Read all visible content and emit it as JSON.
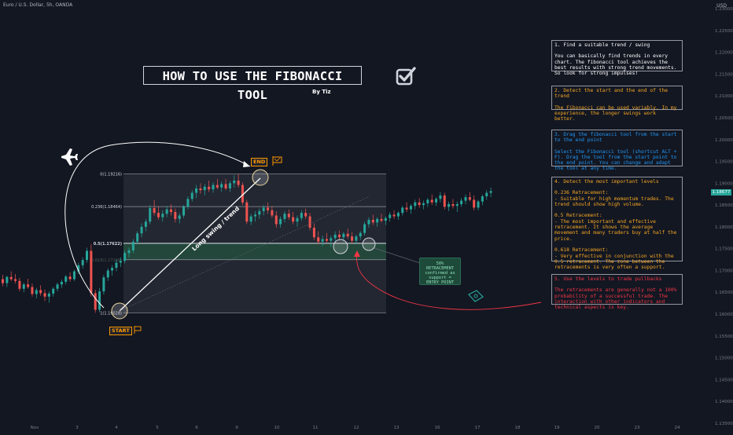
{
  "header": {
    "symbol": "Euro / U.S. Dollar, 5h, OANDA",
    "currency": "USD"
  },
  "title": "HOW TO USE THE FIBONACCI TOOL",
  "byline": "By Tiz",
  "panels": [
    {
      "heading": "1. Find a suitable trend / swing",
      "body": "You can basically find trends in every chart. The fibonacci tool achieves the best results with strong trend movements. So look for strong impulses!",
      "color": "#ffffff"
    },
    {
      "heading": "2. Detect the start and the end of the trend",
      "body": "The Fibonacci can be used variably. In my experience, the longer swings work better.",
      "color": "#f5a623"
    },
    {
      "heading": "3. Drag the fibonacci tool from the start to the end point",
      "body": "Select the Fibonacci tool (shortcut ALT + F). Drag the tool from the start point to the end point. You can change and adapt the tool at any time.",
      "color": "#2196f3"
    },
    {
      "heading": "4. Detect the most important levels",
      "body": "0.236 Retracement:\n- Suitable for high momentum trades. The trend should show high volume.\n\n0.5 Retracement:\n- The most important and effective retracement. It shows the average movement and many traders buy at half the price.\n\n0.618 Retracement:\n- Very effective in conjunction with the 0.5 retracement. The zone between the retracements is very often a support.",
      "color": "#f5a623"
    },
    {
      "heading": "5. Use the levels to trade pullbacks",
      "body": "The retracements are generally not a 100% probability of a successful trade. The interaction with other indicators and technical aspects is key.",
      "color": "#f23645"
    }
  ],
  "annotations": {
    "start": "START",
    "end": "END",
    "trend_line": "Long swing / trend",
    "callout": "50%\nRETRACEMENT\nconfirmed as\nsupport =\nENTRY POINT"
  },
  "fib_levels": [
    {
      "label": "0(1.19216)",
      "price": 1.19216
    },
    {
      "label": "0.236(1.18464)",
      "price": 1.18464
    },
    {
      "label": "0.5(1.17622)",
      "price": 1.17622
    },
    {
      "label": "0.618(1.17246)",
      "price": 1.17246
    },
    {
      "label": "1(1.16028)",
      "price": 1.16028
    }
  ],
  "last_price": "1.18677",
  "colors": {
    "background": "#131722",
    "up": "#26a69a",
    "down": "#ef5350",
    "accent_orange": "#ff9800",
    "accent_blue": "#2196f3",
    "accent_red": "#f23645"
  },
  "chart_data": {
    "type": "candlestick",
    "y_ticks": [
      "1.23000",
      "1.22500",
      "1.22000",
      "1.21500",
      "1.21000",
      "1.20500",
      "1.20000",
      "1.19500",
      "1.19000",
      "1.18500",
      "1.18000",
      "1.17500",
      "1.17000",
      "1.16500",
      "1.16000",
      "1.15500",
      "1.15000",
      "1.14500",
      "1.14000",
      "1.13500"
    ],
    "y_range": [
      1.133,
      1.232
    ],
    "x_ticks": [
      "Nov",
      "3",
      "4",
      "5",
      "6",
      "9",
      "10",
      "11",
      "12",
      "13",
      "16",
      "17",
      "18",
      "19",
      "20",
      "23",
      "24"
    ],
    "series": [
      {
        "values": [
          [
            1.168,
            1.169,
            1.1664,
            1.1671
          ],
          [
            1.1671,
            1.1688,
            1.1662,
            1.1685
          ],
          [
            1.1685,
            1.1698,
            1.1676,
            1.168
          ],
          [
            1.168,
            1.1692,
            1.167,
            1.1676
          ],
          [
            1.1676,
            1.1683,
            1.1652,
            1.1658
          ],
          [
            1.1658,
            1.1672,
            1.165,
            1.1668
          ],
          [
            1.1668,
            1.1681,
            1.1658,
            1.1662
          ],
          [
            1.1662,
            1.167,
            1.164,
            1.1646
          ],
          [
            1.1646,
            1.166,
            1.1636,
            1.1655
          ],
          [
            1.1655,
            1.1666,
            1.1642,
            1.1648
          ],
          [
            1.1648,
            1.1656,
            1.163,
            1.164
          ],
          [
            1.164,
            1.1652,
            1.1626,
            1.1647
          ],
          [
            1.1647,
            1.1662,
            1.164,
            1.1658
          ],
          [
            1.1658,
            1.1672,
            1.1652,
            1.1668
          ],
          [
            1.1668,
            1.1679,
            1.166,
            1.1674
          ],
          [
            1.1674,
            1.169,
            1.1668,
            1.1686
          ],
          [
            1.1686,
            1.1696,
            1.1674,
            1.168
          ],
          [
            1.168,
            1.1702,
            1.1676,
            1.1698
          ],
          [
            1.1698,
            1.1718,
            1.1692,
            1.1712
          ],
          [
            1.1712,
            1.173,
            1.1704,
            1.1724
          ],
          [
            1.1724,
            1.1752,
            1.1718,
            1.1745
          ],
          [
            1.1745,
            1.176,
            1.164,
            1.1648
          ],
          [
            1.1648,
            1.1656,
            1.1603,
            1.161
          ],
          [
            1.161,
            1.166,
            1.1604,
            1.1652
          ],
          [
            1.1652,
            1.169,
            1.1645,
            1.1684
          ],
          [
            1.1684,
            1.1705,
            1.1676,
            1.17
          ],
          [
            1.17,
            1.1712,
            1.1688,
            1.1706
          ],
          [
            1.1706,
            1.1724,
            1.1698,
            1.1718
          ],
          [
            1.1718,
            1.173,
            1.1708,
            1.1722
          ],
          [
            1.1722,
            1.1746,
            1.1716,
            1.174
          ],
          [
            1.174,
            1.1752,
            1.173,
            1.1746
          ],
          [
            1.1746,
            1.1772,
            1.174,
            1.1766
          ],
          [
            1.1766,
            1.179,
            1.176,
            1.1785
          ],
          [
            1.1785,
            1.1808,
            1.1776,
            1.18
          ],
          [
            1.18,
            1.1818,
            1.179,
            1.1812
          ],
          [
            1.1812,
            1.185,
            1.1806,
            1.1843
          ],
          [
            1.1843,
            1.1862,
            1.1826,
            1.1832
          ],
          [
            1.1832,
            1.1846,
            1.1816,
            1.1822
          ],
          [
            1.1822,
            1.1838,
            1.1812,
            1.183
          ],
          [
            1.183,
            1.1848,
            1.1822,
            1.184
          ],
          [
            1.184,
            1.1852,
            1.1826,
            1.1834
          ],
          [
            1.1834,
            1.1842,
            1.181,
            1.1818
          ],
          [
            1.1818,
            1.1832,
            1.1808,
            1.1826
          ],
          [
            1.1826,
            1.185,
            1.182,
            1.1846
          ],
          [
            1.1846,
            1.187,
            1.184,
            1.1864
          ],
          [
            1.1864,
            1.1884,
            1.1858,
            1.1878
          ],
          [
            1.1878,
            1.1896,
            1.1866,
            1.1888
          ],
          [
            1.1888,
            1.19,
            1.1876,
            1.1884
          ],
          [
            1.1884,
            1.1898,
            1.1872,
            1.1892
          ],
          [
            1.1892,
            1.1906,
            1.188,
            1.1886
          ],
          [
            1.1886,
            1.1902,
            1.1878,
            1.1896
          ],
          [
            1.1896,
            1.191,
            1.1886,
            1.189
          ],
          [
            1.189,
            1.1904,
            1.188,
            1.1898
          ],
          [
            1.1898,
            1.191,
            1.1884,
            1.1888
          ],
          [
            1.1888,
            1.1906,
            1.188,
            1.19
          ],
          [
            1.19,
            1.1918,
            1.189,
            1.1906
          ],
          [
            1.1906,
            1.1921,
            1.189,
            1.1896
          ],
          [
            1.1896,
            1.1902,
            1.185,
            1.1856
          ],
          [
            1.1856,
            1.1862,
            1.1806,
            1.1812
          ],
          [
            1.1812,
            1.183,
            1.1804,
            1.1824
          ],
          [
            1.1824,
            1.1836,
            1.1812,
            1.1828
          ],
          [
            1.1828,
            1.1842,
            1.1818,
            1.1836
          ],
          [
            1.1836,
            1.185,
            1.1826,
            1.1844
          ],
          [
            1.1844,
            1.1856,
            1.183,
            1.1838
          ],
          [
            1.1838,
            1.1848,
            1.182,
            1.1826
          ],
          [
            1.1826,
            1.1836,
            1.1798,
            1.1806
          ],
          [
            1.1806,
            1.1824,
            1.1798,
            1.1818
          ],
          [
            1.1818,
            1.1836,
            1.181,
            1.183
          ],
          [
            1.183,
            1.184,
            1.1816,
            1.1822
          ],
          [
            1.1822,
            1.1834,
            1.1806,
            1.1812
          ],
          [
            1.1812,
            1.1826,
            1.18,
            1.182
          ],
          [
            1.182,
            1.1838,
            1.1814,
            1.1832
          ],
          [
            1.1832,
            1.1842,
            1.1818,
            1.1824
          ],
          [
            1.1824,
            1.1832,
            1.1792,
            1.1798
          ],
          [
            1.1798,
            1.1808,
            1.177,
            1.1776
          ],
          [
            1.1776,
            1.179,
            1.176,
            1.1766
          ],
          [
            1.1766,
            1.178,
            1.1756,
            1.1772
          ],
          [
            1.1772,
            1.1786,
            1.1764,
            1.1768
          ],
          [
            1.1768,
            1.178,
            1.1754,
            1.1774
          ],
          [
            1.1774,
            1.179,
            1.1766,
            1.1782
          ],
          [
            1.1782,
            1.1792,
            1.177,
            1.1776
          ],
          [
            1.1776,
            1.1788,
            1.1766,
            1.1784
          ],
          [
            1.1784,
            1.1796,
            1.1772,
            1.1778
          ],
          [
            1.1778,
            1.1788,
            1.1762,
            1.1768
          ],
          [
            1.1768,
            1.1782,
            1.176,
            1.1778
          ],
          [
            1.1778,
            1.179,
            1.177,
            1.1786
          ],
          [
            1.1786,
            1.1812,
            1.178,
            1.1806
          ],
          [
            1.1806,
            1.1822,
            1.1798,
            1.1816
          ],
          [
            1.1816,
            1.1828,
            1.1804,
            1.181
          ],
          [
            1.181,
            1.1822,
            1.18,
            1.1818
          ],
          [
            1.1818,
            1.183,
            1.181,
            1.1814
          ],
          [
            1.1814,
            1.1824,
            1.1804,
            1.182
          ],
          [
            1.182,
            1.1834,
            1.1812,
            1.1828
          ],
          [
            1.1828,
            1.1838,
            1.1818,
            1.1824
          ],
          [
            1.1824,
            1.1836,
            1.1816,
            1.1832
          ],
          [
            1.1832,
            1.1848,
            1.1826,
            1.1844
          ],
          [
            1.1844,
            1.1856,
            1.1834,
            1.184
          ],
          [
            1.184,
            1.1852,
            1.183,
            1.1848
          ],
          [
            1.1848,
            1.1862,
            1.184,
            1.1856
          ],
          [
            1.1856,
            1.1866,
            1.1844,
            1.185
          ],
          [
            1.185,
            1.186,
            1.184,
            1.1854
          ],
          [
            1.1854,
            1.1866,
            1.1846,
            1.1862
          ],
          [
            1.1862,
            1.1874,
            1.185,
            1.1856
          ],
          [
            1.1856,
            1.1868,
            1.1848,
            1.1864
          ],
          [
            1.1864,
            1.188,
            1.1856,
            1.1872
          ],
          [
            1.1872,
            1.1878,
            1.184,
            1.1846
          ],
          [
            1.1846,
            1.1858,
            1.1836,
            1.1852
          ],
          [
            1.1852,
            1.1864,
            1.1842,
            1.1848
          ],
          [
            1.1848,
            1.1858,
            1.1834,
            1.1852
          ],
          [
            1.1852,
            1.1866,
            1.1846,
            1.186
          ],
          [
            1.186,
            1.1874,
            1.1852,
            1.1868
          ],
          [
            1.1868,
            1.188,
            1.1858,
            1.1862
          ],
          [
            1.1862,
            1.1872,
            1.1838,
            1.1844
          ],
          [
            1.1844,
            1.1862,
            1.1838,
            1.1858
          ],
          [
            1.1858,
            1.1874,
            1.185,
            1.187
          ],
          [
            1.187,
            1.1884,
            1.1862,
            1.1878
          ],
          [
            1.1878,
            1.189,
            1.1868,
            1.1882
          ]
        ]
      }
    ]
  }
}
